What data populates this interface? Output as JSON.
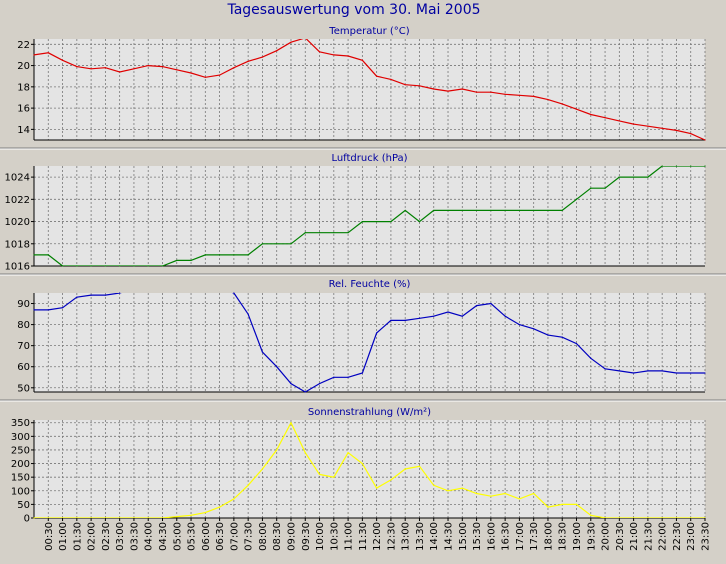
{
  "page": {
    "title": "Tagesauswertung vom 30. Mai 2005"
  },
  "x_ticks": [
    "00:30",
    "01:00",
    "01:30",
    "02:00",
    "02:30",
    "03:00",
    "03:30",
    "04:00",
    "04:30",
    "05:00",
    "05:30",
    "06:00",
    "06:30",
    "07:00",
    "07:30",
    "08:00",
    "08:30",
    "09:00",
    "09:30",
    "10:00",
    "10:30",
    "11:00",
    "11:30",
    "12:00",
    "12:30",
    "13:00",
    "13:30",
    "14:00",
    "14:30",
    "15:00",
    "15:30",
    "16:00",
    "16:30",
    "17:00",
    "17:30",
    "18:00",
    "18:30",
    "19:00",
    "19:30",
    "20:00",
    "20:30",
    "21:00",
    "21:30",
    "22:00",
    "22:30",
    "23:00",
    "23:30"
  ],
  "colors": {
    "background": "#d4d0c8",
    "plot": "#e4e4e4",
    "title": "#0000a0",
    "temp": "#e00000",
    "pressure": "#008000",
    "humidity": "#0000c0",
    "solar": "#ffff00"
  },
  "chart_data": [
    {
      "type": "line",
      "title": "Temperatur (°C)",
      "ylim": [
        13,
        22.5
      ],
      "yticks": [
        14,
        16,
        18,
        20,
        22
      ],
      "grid": true,
      "x": [
        0.0,
        0.5,
        1.0,
        1.5,
        2.0,
        2.5,
        3.0,
        3.5,
        4.0,
        4.5,
        5.0,
        5.5,
        6.0,
        6.5,
        7.0,
        7.5,
        8.0,
        8.5,
        9.0,
        9.5,
        10.0,
        10.5,
        11.0,
        11.5,
        12.0,
        12.5,
        13.0,
        13.5,
        14.0,
        14.5,
        15.0,
        15.5,
        16.0,
        16.5,
        17.0,
        17.5,
        18.0,
        18.5,
        19.0,
        19.5,
        20.0,
        20.5,
        21.0,
        21.5,
        22.0,
        22.5,
        23.0,
        23.5
      ],
      "series": [
        {
          "color": "#e00000",
          "values": [
            21.0,
            21.2,
            20.5,
            19.9,
            19.7,
            19.8,
            19.4,
            19.7,
            20.0,
            19.9,
            19.6,
            19.3,
            18.9,
            19.1,
            19.8,
            20.4,
            20.8,
            21.4,
            22.2,
            22.6,
            21.3,
            21.0,
            20.9,
            20.5,
            19.0,
            18.7,
            18.2,
            18.1,
            17.8,
            17.6,
            17.8,
            17.5,
            17.5,
            17.3,
            17.2,
            17.1,
            16.8,
            16.4,
            15.9,
            15.4,
            15.1,
            14.8,
            14.5,
            14.3,
            14.1,
            13.9,
            13.6,
            13.0
          ]
        }
      ]
    },
    {
      "type": "line",
      "title": "Luftdruck (hPa)",
      "ylim": [
        1016,
        1025
      ],
      "yticks": [
        1016,
        1018,
        1020,
        1022,
        1024
      ],
      "grid": true,
      "x": [
        0.0,
        0.5,
        1.0,
        1.5,
        2.0,
        2.5,
        3.0,
        3.5,
        4.0,
        4.5,
        5.0,
        5.5,
        6.0,
        6.5,
        7.0,
        7.5,
        8.0,
        8.5,
        9.0,
        9.5,
        10.0,
        10.5,
        11.0,
        11.5,
        12.0,
        12.5,
        13.0,
        13.5,
        14.0,
        14.5,
        15.0,
        15.5,
        16.0,
        16.5,
        17.0,
        17.5,
        18.0,
        18.5,
        19.0,
        19.5,
        20.0,
        20.5,
        21.0,
        21.5,
        22.0,
        22.5,
        23.0,
        23.5
      ],
      "series": [
        {
          "color": "#008000",
          "values": [
            1017,
            1017,
            1016,
            1016,
            1016,
            1016,
            1016,
            1016,
            1016,
            1016,
            1016.5,
            1016.5,
            1017,
            1017,
            1017,
            1017,
            1018,
            1018,
            1018,
            1019,
            1019,
            1019,
            1019,
            1020,
            1020,
            1020,
            1021,
            1020,
            1021,
            1021,
            1021,
            1021,
            1021,
            1021,
            1021,
            1021,
            1021,
            1021,
            1022,
            1023,
            1023,
            1024,
            1024,
            1024,
            1025,
            1025,
            1025,
            1025
          ]
        }
      ]
    },
    {
      "type": "line",
      "title": "Rel. Feuchte (%)",
      "ylim": [
        48,
        95
      ],
      "yticks": [
        50,
        60,
        70,
        80,
        90
      ],
      "grid": true,
      "x": [
        0.0,
        0.5,
        1.0,
        1.5,
        2.0,
        2.5,
        3.0,
        3.5,
        4.0,
        4.5,
        5.0,
        5.5,
        6.0,
        6.5,
        7.0,
        7.5,
        8.0,
        8.5,
        9.0,
        9.5,
        10.0,
        10.5,
        11.0,
        11.5,
        12.0,
        12.5,
        13.0,
        13.5,
        14.0,
        14.5,
        15.0,
        15.5,
        16.0,
        16.5,
        17.0,
        17.5,
        18.0,
        18.5,
        19.0,
        19.5,
        20.0,
        20.5,
        21.0,
        21.5,
        22.0,
        22.5,
        23.0,
        23.5
      ],
      "series": [
        {
          "color": "#0000c0",
          "values": [
            87,
            87,
            88,
            93,
            94,
            94,
            95,
            97,
            97,
            97,
            97,
            97,
            97,
            97,
            95,
            85,
            67,
            60,
            52,
            48,
            52,
            55,
            55,
            57,
            76,
            82,
            82,
            83,
            84,
            86,
            84,
            89,
            90,
            84,
            80,
            78,
            75,
            74,
            71,
            64,
            59,
            58,
            57,
            58,
            58,
            57,
            57,
            57
          ]
        }
      ]
    },
    {
      "type": "line",
      "title": "Sonnenstrahlung (W/m²)",
      "ylim": [
        0,
        360
      ],
      "yticks": [
        0,
        50,
        100,
        150,
        200,
        250,
        300,
        350
      ],
      "grid": true,
      "x": [
        0.0,
        0.5,
        1.0,
        1.5,
        2.0,
        2.5,
        3.0,
        3.5,
        4.0,
        4.5,
        5.0,
        5.5,
        6.0,
        6.5,
        7.0,
        7.5,
        8.0,
        8.5,
        9.0,
        9.5,
        10.0,
        10.5,
        11.0,
        11.5,
        12.0,
        12.5,
        13.0,
        13.5,
        14.0,
        14.5,
        15.0,
        15.5,
        16.0,
        16.5,
        17.0,
        17.5,
        18.0,
        18.5,
        19.0,
        19.5,
        20.0,
        20.5,
        21.0,
        21.5,
        22.0,
        22.5,
        23.0,
        23.5
      ],
      "series": [
        {
          "color": "#ffff00",
          "values": [
            0,
            0,
            0,
            0,
            0,
            0,
            0,
            0,
            0,
            0,
            5,
            10,
            20,
            40,
            70,
            120,
            180,
            250,
            350,
            240,
            160,
            150,
            240,
            200,
            110,
            140,
            180,
            190,
            120,
            100,
            110,
            90,
            80,
            90,
            70,
            90,
            40,
            50,
            50,
            10,
            0,
            0,
            0,
            0,
            0,
            0,
            0,
            0
          ]
        }
      ]
    }
  ]
}
